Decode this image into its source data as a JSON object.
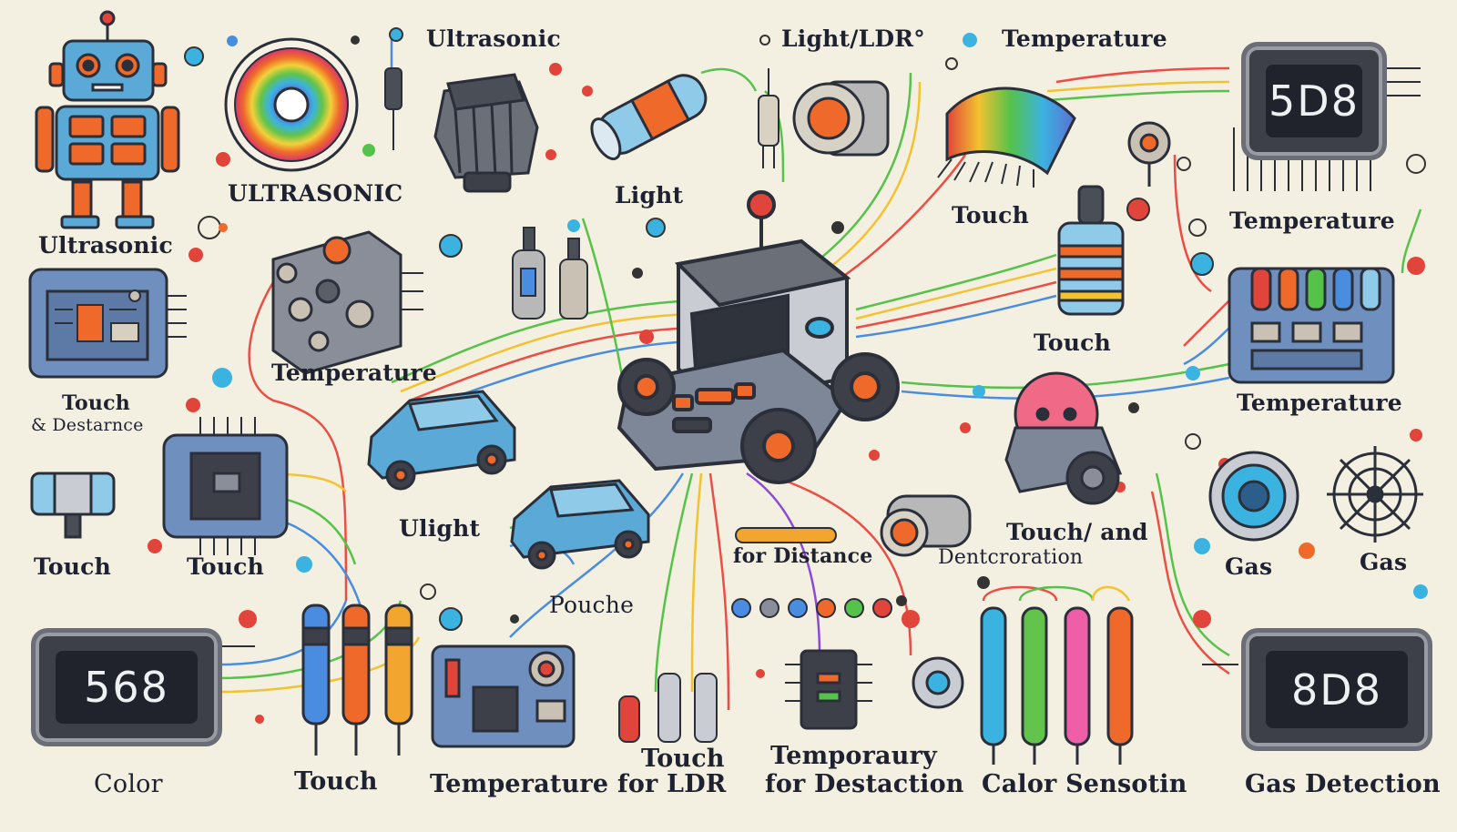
{
  "labels": {
    "ultrasonic_top": "Ultrasonic",
    "light_ldr": "Light/LDR°",
    "temperature_top": "Temperature",
    "ultrasonic_left": "Ultrasonic",
    "ultrasonic_mid": "ULTRASONIC",
    "light_mid": "Light",
    "touch_right_top": "Touch",
    "temperature_right_top": "Temperature",
    "temperature_left": "Temperature",
    "touch_right_mid": "Touch",
    "temperature_right_mid": "Temperature",
    "touch_left_line1": "Touch",
    "touch_left_line2": "& Destarnce",
    "ulight": "Ulight",
    "for_distance": "for Distance",
    "touch_and_line1": "Touch/ and",
    "touch_and_line2": "Dentcroration",
    "touch_bl1": "Touch",
    "touch_bl2": "Touch",
    "gas_1": "Gas",
    "gas_2": "Gas",
    "pouche": "Pouche",
    "color": "Color",
    "touch_bottom": "Touch",
    "temperature_bottom": "Temperature",
    "touch_for_ldr_1": "Touch",
    "touch_for_ldr_2": "for LDR",
    "temporaury_1": "Temporaury",
    "temporaury_2": "for Destaction",
    "calor_sensotin": "Calor Sensotin",
    "gas_detection": "Gas Detection"
  },
  "displays": {
    "top_right": "5D8",
    "bottom_left": "568",
    "bottom_right": "8D8"
  },
  "colors": {
    "background": "#f4f0e1",
    "robot_blue": "#5aa9d6",
    "accent_orange": "#ef6a2a",
    "accent_red": "#e0443a",
    "board_blue": "#6f8fbf",
    "wire_green": "#55c24a",
    "wire_yellow": "#f2c230",
    "wire_red": "#ec4d44",
    "wire_blue": "#4a8de0"
  },
  "icons": [
    "robot-icon",
    "ultrasonic-disc-icon",
    "ultrasonic-sensor-icon",
    "light-sensor-icon",
    "ldr-sensor-icon",
    "temperature-chip-icon",
    "circuit-board-icon",
    "microchip-icon",
    "rover-robot-icon",
    "car-icon",
    "seven-segment-display-icon",
    "probe-icon",
    "gas-sensor-icon",
    "wheel-icon"
  ]
}
